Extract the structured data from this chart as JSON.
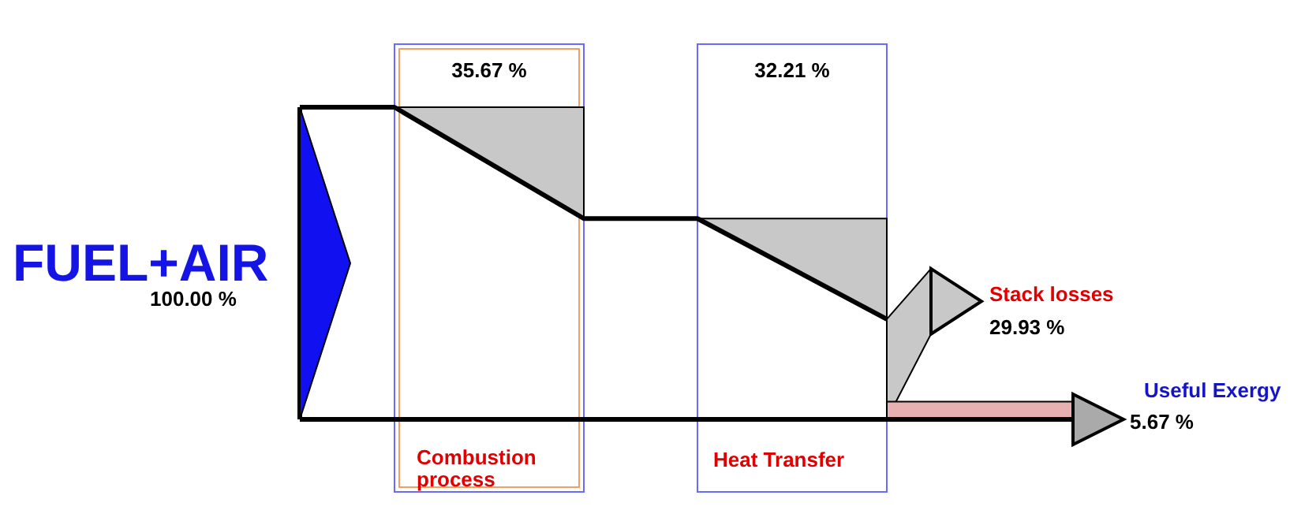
{
  "chart_data": {
    "type": "other",
    "categories": [
      "FUEL+AIR",
      "Combustion process",
      "Heat Transfer",
      "Stack losses",
      "Useful Exergy"
    ],
    "values": [
      100,
      35.67,
      32.21,
      29.93,
      5.67
    ],
    "value_labels": [
      "100.00 %",
      "35.67 %",
      "32.21 %",
      "29.93 %",
      "5.67 %"
    ],
    "colors": [
      "#1414e6",
      "#e00000",
      "#e00000",
      "#e00000",
      "#1414c8"
    ]
  }
}
